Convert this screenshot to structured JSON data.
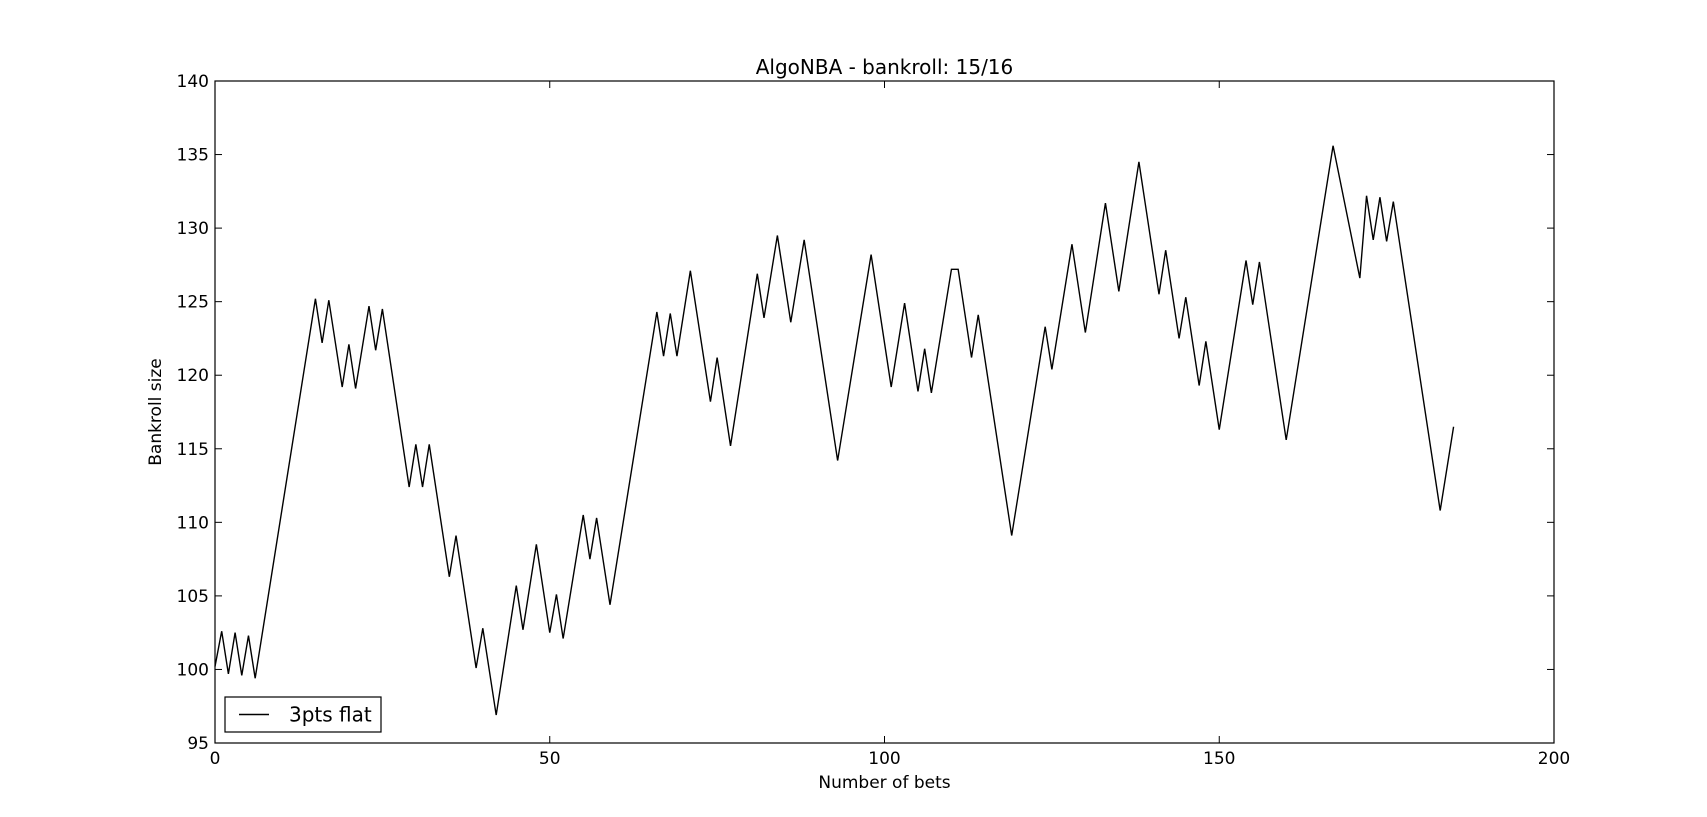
{
  "chart_data": {
    "type": "line",
    "title": "AlgoNBA - bankroll: 15/16",
    "xlabel": "Number of bets",
    "ylabel": "Bankroll size",
    "xlim": [
      0,
      200
    ],
    "ylim": [
      95,
      140
    ],
    "xticks": [
      0,
      50,
      100,
      150,
      200
    ],
    "yticks": [
      95,
      100,
      105,
      110,
      115,
      120,
      125,
      130,
      135,
      140
    ],
    "grid": false,
    "legend_position": "lower-left",
    "line_color": "#000000",
    "series": [
      {
        "name": "3pts flat",
        "x": [
          0,
          1,
          2,
          3,
          4,
          5,
          6,
          15,
          16,
          17,
          19,
          20,
          21,
          23,
          24,
          25,
          29,
          30,
          31,
          32,
          35,
          36,
          39,
          40,
          42,
          45,
          46,
          48,
          50,
          51,
          52,
          55,
          56,
          57,
          59,
          66,
          67,
          68,
          69,
          71,
          74,
          75,
          77,
          81,
          82,
          84,
          86,
          88,
          93,
          98,
          101,
          103,
          105,
          106,
          107,
          110,
          111,
          113,
          114,
          119,
          124,
          125,
          128,
          130,
          133,
          135,
          138,
          141,
          142,
          144,
          145,
          147,
          148,
          150,
          154,
          155,
          156,
          160,
          167,
          171,
          172,
          173,
          174,
          175,
          176,
          183,
          185
        ],
        "y": [
          100.2,
          102.6,
          99.7,
          102.5,
          99.6,
          102.3,
          99.4,
          125.2,
          122.2,
          125.1,
          119.2,
          122.1,
          119.1,
          124.7,
          121.7,
          124.5,
          112.4,
          115.3,
          112.4,
          115.3,
          106.3,
          109.1,
          100.1,
          102.8,
          96.9,
          105.7,
          102.7,
          108.5,
          102.5,
          105.1,
          102.1,
          110.5,
          107.5,
          110.3,
          104.4,
          124.3,
          121.3,
          124.2,
          121.3,
          127.1,
          118.2,
          121.2,
          115.2,
          126.9,
          123.9,
          129.5,
          123.6,
          129.2,
          114.2,
          128.2,
          119.2,
          124.9,
          118.9,
          121.8,
          118.8,
          127.2,
          127.2,
          121.2,
          124.1,
          109.1,
          123.3,
          120.4,
          128.9,
          122.9,
          131.7,
          125.7,
          134.5,
          125.5,
          128.5,
          122.5,
          125.3,
          119.3,
          122.3,
          116.3,
          127.8,
          124.8,
          127.7,
          115.6,
          135.6,
          126.6,
          132.2,
          129.2,
          132.1,
          129.1,
          131.8,
          110.8,
          116.5
        ]
      }
    ]
  }
}
